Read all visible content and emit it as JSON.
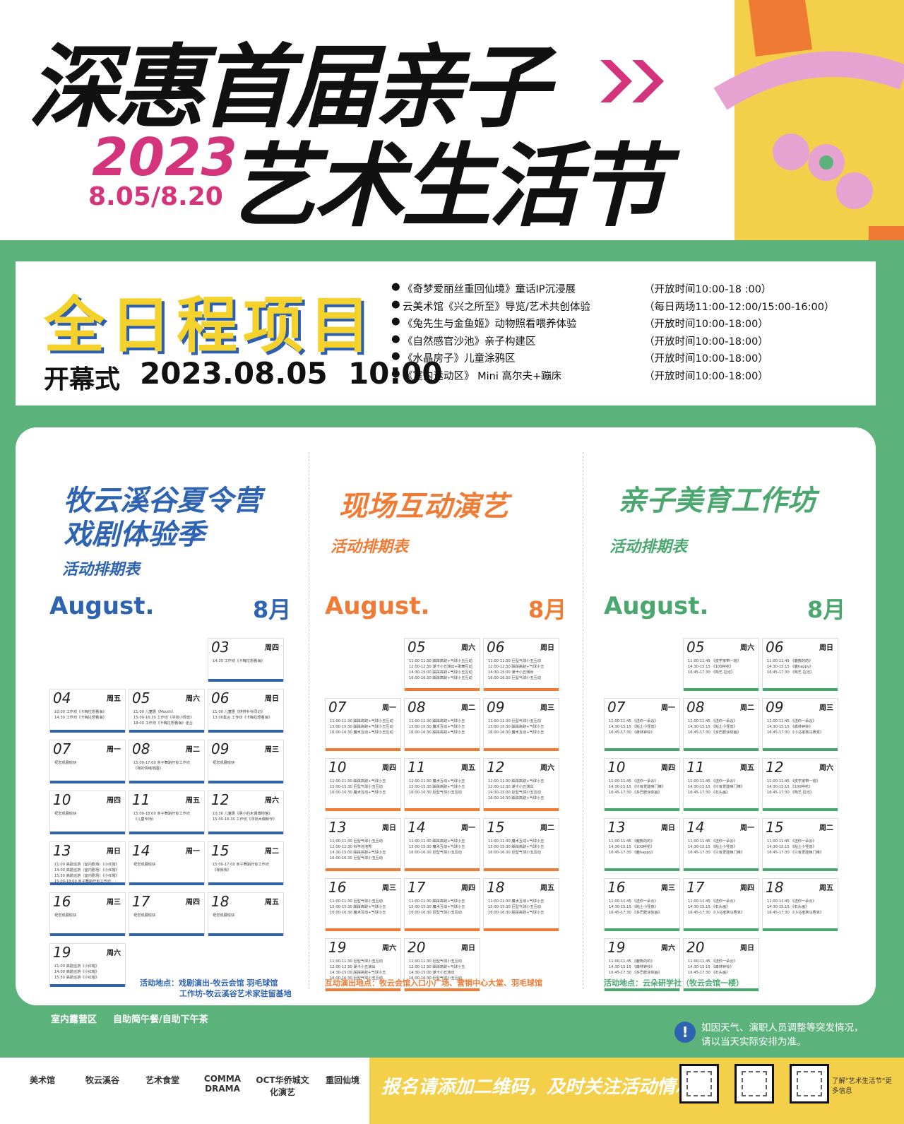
{
  "header": {
    "title_line1": "深惠首届亲子",
    "title_line2": "艺术生活节",
    "year": "2023",
    "dates": "8.05/8.20"
  },
  "all_day": {
    "title": "全日程项目",
    "opening_label": "开幕式",
    "opening_time": "2023.08.05  10:00",
    "items": [
      {
        "name": "《奇梦爱丽丝重回仙境》童话IP沉浸展",
        "hours": "（开放时间10:00-18 :00）"
      },
      {
        "name": "云美术馆《兴之所至》导览/艺术共创体验",
        "hours": "（每日两场11:00-12:00/15:00-16:00）"
      },
      {
        "name": "《兔先生与金鱼姬》动物照看喂养体验",
        "hours": "（开放时间10:00-18:00）"
      },
      {
        "name": "《自然感官沙池》亲子构建区",
        "hours": "（开放时间10:00-18:00）"
      },
      {
        "name": "《水晶房子》儿童涂鸦区",
        "hours": "（开放时间10:00-18:00）"
      },
      {
        "name": "《室内运动区》 Mini 高尔夫+蹦床",
        "hours": "（开放时间10:00-18:00）"
      }
    ]
  },
  "columns": [
    {
      "title_lines": [
        "牧云溪谷夏令营",
        "戏剧体验季"
      ],
      "subtitle": "活动排期表",
      "month_en": "August.",
      "month_cn": "8月",
      "days": [
        {
          "day": "03",
          "weekday": "周四",
          "lines": [
            "14:30 工作坊《卡梅拉想看海》"
          ]
        },
        {
          "day": "04",
          "weekday": "周五",
          "lines": [
            "10:00 工作坊《卡梅拉想看海》",
            "14:30 工作坊《卡梅拉想看海》"
          ]
        },
        {
          "day": "05",
          "weekday": "周六",
          "lines": [
            "11:00 儿童剧《Mouth》",
            "15:00-16:30 工作坊《寻找小怪兽》",
            "18:00 工作坊《卡梅拉想看海》走台"
          ]
        },
        {
          "day": "06",
          "weekday": "周日",
          "lines": [
            "11:00 儿童剧《拼拼补补同记》",
            "13:00集合 工作坊《卡梅拉想看海》"
          ]
        },
        {
          "day": "07",
          "weekday": "周一",
          "lines": [
            "祝您观展愉快"
          ]
        },
        {
          "day": "08",
          "weekday": "周二",
          "lines": [
            "15:00-17:00 亲子舞蹈疗愈工作坊",
            "《我的情绪地图》"
          ]
        },
        {
          "day": "09",
          "weekday": "周三",
          "lines": [
            "祝您观展愉快"
          ]
        },
        {
          "day": "10",
          "weekday": "周四",
          "lines": [
            "祝您观展愉快"
          ]
        },
        {
          "day": "11",
          "weekday": "周五",
          "lines": [
            "15:00-18:00 亲子舞蹈疗愈工作坊",
            "《儿童专场》"
          ]
        },
        {
          "day": "12",
          "weekday": "周六",
          "lines": [
            "10:30 儿童剧《胆小的木偶博物馆》",
            "15:00-16:30 工作坊《寻找木偶制作》"
          ]
        },
        {
          "day": "13",
          "weekday": "周日",
          "lines": [
            "11:00 高跷巡游（室内剧场）《小红帽》",
            "14:00 高跷巡游（室内剧场）《小红帽》",
            "15:30 高跷巡游（室内剧场）《小红帽》",
            "15:00-18:00 亲子舞蹈疗愈工作坊"
          ]
        },
        {
          "day": "14",
          "weekday": "周一",
          "lines": [
            "祝您观展愉快"
          ]
        },
        {
          "day": "15",
          "weekday": "周二",
          "lines": [
            "15:00-17:00 亲子舞蹈疗愈工作坊",
            "《我我我》"
          ]
        },
        {
          "day": "16",
          "weekday": "周三",
          "lines": [
            "祝您观展愉快"
          ]
        },
        {
          "day": "17",
          "weekday": "周四",
          "lines": [
            "祝您观展愉快"
          ]
        },
        {
          "day": "18",
          "weekday": "周五",
          "lines": [
            "祝您观展愉快"
          ]
        },
        {
          "day": "19",
          "weekday": "周六",
          "lines": [
            "11:00 高跷巡游《小红帽》",
            "14:00 高跷巡游《小红帽》",
            "15:30 高跷巡游《小红帽》"
          ]
        }
      ],
      "location_lines": [
        "活动地点：戏剧演出-牧云会馆 羽毛球馆",
        "工作坊-牧云溪谷艺术家驻留基地"
      ]
    },
    {
      "title_lines": [
        "现场互动演艺"
      ],
      "subtitle": "活动排期表",
      "month_en": "August.",
      "month_cn": "8月",
      "days": [
        {
          "day": "05",
          "weekday": "周六",
          "lines": [
            "11:00-11:30 踩踩高跷+气球小丑互动",
            "12:00-12:30 潮卡小丑演出+歌舞互动",
            "14:30-15:00 踩踩高跷+气球小丑互动",
            "16:00-16:30 踩踩高跷+气球小丑互动"
          ]
        },
        {
          "day": "06",
          "weekday": "周日",
          "lines": [
            "11:00-11:30 巨型气球小丑互动",
            "12:00-12:30 踩踩高跷+气球小丑",
            "14:30-15:00 潮卡小丑演出",
            "16:00-16:30 巨型气球小丑互动"
          ]
        },
        {
          "day": "07",
          "weekday": "周一",
          "lines": [
            "11:00-11:30 踩踩高跷+气球小丑互动",
            "15:00-15:30 踩踩高跷+气球小丑互动",
            "16:00-16:30 魔术互动+气球小丑互动"
          ]
        },
        {
          "day": "08",
          "weekday": "周二",
          "lines": [
            "11:00-11:30 踩踩高跷+气球小丑",
            "15:00-15:30 魔术互动+气球小丑",
            "16:00-16:30 踩踩高跷+气球小丑"
          ]
        },
        {
          "day": "09",
          "weekday": "周三",
          "lines": [
            "11:00-11:30 巨型气球小丑互动",
            "15:00-15:30 踩踩高跷+气球小丑",
            "16:00-16:30 魔术互动+气球小丑"
          ]
        },
        {
          "day": "10",
          "weekday": "周四",
          "lines": [
            "11:00-11:30 踩踩高跷+气球小丑",
            "15:00-15:30 巨型气球小丑互动",
            "16:00-16:30 魔术互动+气球小丑"
          ]
        },
        {
          "day": "11",
          "weekday": "周五",
          "lines": [
            "11:00-11:30 魔术互动+气球小丑",
            "15:00-15:30 踩踩高跷+气球小丑",
            "16:00-16:30 巨型气球小丑互动"
          ]
        },
        {
          "day": "12",
          "weekday": "周六",
          "lines": [
            "11:00-11:30 踩踩高跷+气球小丑",
            "12:00-12:30 潮卡小丑演出",
            "14:30-15:00 巨型气球小丑互动",
            "16:00-16:30 踩踩高跷+气球小丑"
          ]
        },
        {
          "day": "13",
          "weekday": "周日",
          "lines": [
            "11:00-11:30 巨型气球小丑互动",
            "12:00-12:30 科学泡泡秀",
            "14:30-15:00 踩踩高跷+气球小丑",
            "16:00-16:30 巨型气球小丑互动"
          ]
        },
        {
          "day": "14",
          "weekday": "周一",
          "lines": [
            "11:00-11:30 踩踩高跷+气球小丑",
            "15:00-15:30 魔术互动+气球小丑",
            "16:00-16:30 巨型气球小丑互动"
          ]
        },
        {
          "day": "15",
          "weekday": "周二",
          "lines": [
            "11:00-11:30 魔术互动+气球小丑",
            "15:00-15:30 踩踩高跷+气球小丑",
            "16:00-16:30 巨型气球小丑互动"
          ]
        },
        {
          "day": "16",
          "weekday": "周三",
          "lines": [
            "11:00-11:30 巨型气球小丑互动",
            "15:00-15:30 踩踩高跷+气球小丑",
            "16:00-16:30 魔术互动+气球小丑"
          ]
        },
        {
          "day": "17",
          "weekday": "周四",
          "lines": [
            "11:00-11:30 踩踩高跷+气球小丑",
            "15:00-15:30 魔术互动+气球小丑",
            "16:00-16:30 巨型气球小丑互动"
          ]
        },
        {
          "day": "18",
          "weekday": "周五",
          "lines": [
            "11:00-11:30 魔术互动+气球小丑",
            "15:00-15:30 巨型气球小丑互动",
            "16:00-16:30 踩踩高跷+气球小丑"
          ]
        },
        {
          "day": "19",
          "weekday": "周六",
          "lines": [
            "11:00-11:30 巨型气球小丑互动",
            "12:00-12:30 潮卡小丑演出",
            "14:30-15:00 踩踩高跷+气球小丑",
            "16:00-16:30 巨型气球小丑互动"
          ]
        },
        {
          "day": "20",
          "weekday": "周日",
          "lines": [
            "11:00-11:30 巨型气球小丑互动",
            "12:00-12:30 踩踩高跷+气球小丑",
            "14:30-15:00 潮卡小丑演出",
            "16:00-16:30 巨型气球小丑互动"
          ]
        }
      ],
      "location_lines": [
        "互动演出地点：牧云会馆入口小广场、营销中心大堂、羽毛球馆"
      ]
    },
    {
      "title_lines": [
        "亲子美育工作坊"
      ],
      "subtitle": "活动排期表",
      "month_en": "August.",
      "month_cn": "8月",
      "days": [
        {
          "day": "05",
          "weekday": "周六",
          "lines": [
            "11:00-11:45 《皮学家带一班》",
            "14:30-15:15 《100种花》",
            "16:45-17:30 《陶艺·拉坯》"
          ]
        },
        {
          "day": "06",
          "weekday": "周日",
          "lines": [
            "11:00-11:45 《鹿熊的的》",
            "14:30-15:15 《鹿happy》",
            "16:45-17:30 《陶艺·拉坯》"
          ]
        },
        {
          "day": "07",
          "weekday": "周一",
          "lines": [
            "11:00-11:45 《送你一朵云》",
            "14:30-15:15 《粘土小怪兽》",
            "16:45-17:30 《森林钟铃》"
          ]
        },
        {
          "day": "08",
          "weekday": "周二",
          "lines": [
            "11:00-11:45 《送你一朵云》",
            "14:30-15:15 《粘土小怪兽》",
            "16:45-17:30 《多巴胺涂体画》"
          ]
        },
        {
          "day": "09",
          "weekday": "周三",
          "lines": [
            "11:00-11:45 《送你一朵云》",
            "14:30-15:15 《森林钟铃》",
            "16:45-17:30 《小马家族马赛克》"
          ]
        },
        {
          "day": "10",
          "weekday": "周四",
          "lines": [
            "11:00-11:45 《送你一朵云》",
            "14:30-15:15 《只有爱能唤门帷》",
            "16:45-17:30 《多巴胺涂体画》"
          ]
        },
        {
          "day": "11",
          "weekday": "周五",
          "lines": [
            "11:00-11:45 《送你一朵云》",
            "14:30-15:15 《只有爱能唤门帷》",
            "16:45-17:30 《石头画》"
          ]
        },
        {
          "day": "12",
          "weekday": "周六",
          "lines": [
            "11:00-11:45 《皮学家带一班》",
            "14:30-15:15 《100种花》",
            "16:45-17:30 《陶艺·拉坯》"
          ]
        },
        {
          "day": "13",
          "weekday": "周日",
          "lines": [
            "11:00-11:45 《鹿熊的的》",
            "14:30-15:15 《100种花》",
            "16:45-17:30 《鹿happy》"
          ]
        },
        {
          "day": "14",
          "weekday": "周一",
          "lines": [
            "11:00-11:45 《送你一朵云》",
            "14:30-15:15 《粘土小怪兽》",
            "16:45-17:30 《只有爱能唤门帷》"
          ]
        },
        {
          "day": "15",
          "weekday": "周二",
          "lines": [
            "11:00-11:45 《送你一朵云》",
            "14:30-15:15 《粘土小怪兽》",
            "16:45-17:30 《只有爱能唤门帷》"
          ]
        },
        {
          "day": "16",
          "weekday": "周三",
          "lines": [
            "11:00-11:45 《送你一朵云》",
            "14:30-15:15 《粘土小怪兽》",
            "16:45-17:30 《多巴胺涂体画》"
          ]
        },
        {
          "day": "17",
          "weekday": "周四",
          "lines": [
            "11:00-11:45 《送你一朵云》",
            "14:30-15:15 《石头画》",
            "16:45-17:30 《小马家族马赛克》"
          ]
        },
        {
          "day": "18",
          "weekday": "周五",
          "lines": [
            "11:00-11:45 《送你一朵云》",
            "14:30-15:15 《石头画》",
            "16:45-17:30 《小马家族马赛克》"
          ]
        },
        {
          "day": "19",
          "weekday": "周六",
          "lines": [
            "11:00-11:45 《鹿熊的的》",
            "14:30-15:15 《森林钟铃》",
            "16:45-17:30 《多巴胺涂体画》"
          ]
        },
        {
          "day": "20",
          "weekday": "周日",
          "lines": [
            "11:00-11:45 《送你一朵云》",
            "14:30-15:15 《森林钟铃》",
            "16:45-17:30 《石头画》"
          ]
        }
      ],
      "location_lines": [
        "活动地点：云朵研学社（牧云会馆一楼）"
      ]
    }
  ],
  "footer": {
    "areas": [
      "室内露营区",
      "自助简午餐/自助下午茶"
    ],
    "notice": "如因天气、演职人员调整等突发情况，请以当天实际安排为准。"
  },
  "sponsors": {
    "logos": [
      "美术馆",
      "牧云溪谷",
      "艺术食堂",
      "COMMA DRAMA",
      "OCT华侨城文化演艺",
      "重回仙境"
    ],
    "banner": "报名请添加二维码，及时关注活动情况",
    "qr_caption": "了解\"艺术生活节\"更多信息"
  }
}
